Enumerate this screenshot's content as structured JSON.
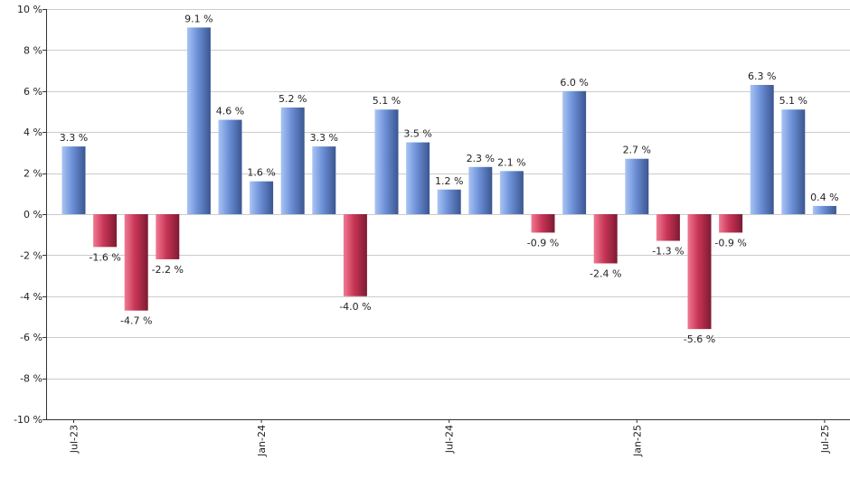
{
  "chart_data": {
    "type": "bar",
    "categories": [
      "Jul-23",
      "Aug-23",
      "Sep-23",
      "Oct-23",
      "Nov-23",
      "Dec-23",
      "Jan-24",
      "Feb-24",
      "Mar-24",
      "Apr-24",
      "May-24",
      "Jun-24",
      "Jul-24",
      "Aug-24",
      "Sep-24",
      "Oct-24",
      "Nov-24",
      "Dec-24",
      "Jan-25",
      "Feb-25",
      "Mar-25",
      "Apr-25",
      "May-25",
      "Jun-25",
      "Jul-25"
    ],
    "values": [
      3.3,
      -1.6,
      -4.7,
      -2.2,
      9.1,
      4.6,
      1.6,
      5.2,
      3.3,
      -4.0,
      5.1,
      3.5,
      1.2,
      2.3,
      2.1,
      -0.9,
      6.0,
      -2.4,
      2.7,
      -1.3,
      -5.6,
      -0.9,
      6.3,
      5.1,
      0.4
    ],
    "data_labels": [
      "3.3 %",
      "-1.6 %",
      "-4.7 %",
      "-2.2 %",
      "9.1 %",
      "4.6 %",
      "1.6 %",
      "5.2 %",
      "3.3 %",
      "-4.0 %",
      "5.1 %",
      "3.5 %",
      "1.2 %",
      "2.3 %",
      "2.1 %",
      "-0.9 %",
      "6.0 %",
      "-2.4 %",
      "2.7 %",
      "-1.3 %",
      "-5.6 %",
      "-0.9 %",
      "6.3 %",
      "5.1 %",
      "0.4 %"
    ],
    "x_tick_labels": [
      {
        "category": "Jul-23",
        "label": "Jul-23"
      },
      {
        "category": "Jan-24",
        "label": "Jan-24"
      },
      {
        "category": "Jul-24",
        "label": "Jul-24"
      },
      {
        "category": "Jan-25",
        "label": "Jan-25"
      },
      {
        "category": "Jul-25",
        "label": "Jul-25"
      }
    ],
    "y_tick_values": [
      10,
      8,
      6,
      4,
      2,
      0,
      -2,
      -4,
      -6,
      -8,
      -10
    ],
    "y_tick_labels": [
      "10 %",
      "8 %",
      "6 %",
      "4 %",
      "2 %",
      "0 %",
      "-2 %",
      "-4 %",
      "-6 %",
      "-8 %",
      "-10 %"
    ],
    "ylim": [
      -10,
      10
    ],
    "grid": true,
    "legend": "none",
    "colors": {
      "positive_light": "#a9c4f5",
      "positive_mid": "#6b8fd6",
      "positive_dark": "#3b5690",
      "negative_light": "#f07a92",
      "negative_mid": "#c83556",
      "negative_dark": "#7d1a32",
      "grid": "#cccccc",
      "axis": "#333333",
      "text": "#222222"
    }
  }
}
